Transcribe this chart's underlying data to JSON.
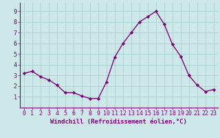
{
  "x": [
    0,
    1,
    2,
    3,
    4,
    5,
    6,
    7,
    8,
    9,
    10,
    11,
    12,
    13,
    14,
    15,
    16,
    17,
    18,
    19,
    20,
    21,
    22,
    23
  ],
  "y": [
    3.2,
    3.4,
    2.9,
    2.6,
    2.1,
    1.4,
    1.4,
    1.1,
    0.85,
    0.85,
    2.4,
    4.7,
    6.0,
    7.0,
    8.0,
    8.5,
    9.0,
    7.8,
    5.9,
    4.8,
    3.0,
    2.1,
    1.5,
    1.7
  ],
  "line_color": "#800080",
  "marker": "D",
  "marker_size": 2.2,
  "bg_color": "#cce8e8",
  "grid_color": "#99cccc",
  "xlabel": "Windchill (Refroidissement éolien,°C)",
  "xlim": [
    -0.5,
    23.5
  ],
  "ylim": [
    0,
    9.8
  ],
  "yticks": [
    1,
    2,
    3,
    4,
    5,
    6,
    7,
    8,
    9
  ],
  "xticks": [
    0,
    1,
    2,
    3,
    4,
    5,
    6,
    7,
    8,
    9,
    10,
    11,
    12,
    13,
    14,
    15,
    16,
    17,
    18,
    19,
    20,
    21,
    22,
    23
  ],
  "xlabel_fontsize": 6.5,
  "tick_fontsize": 6.0,
  "line_width": 1.0
}
